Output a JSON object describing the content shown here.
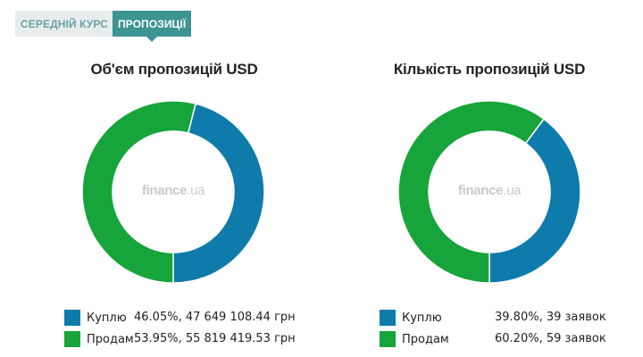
{
  "tabs": [
    {
      "label": "СЕРЕДНІЙ КУРС",
      "active": false
    },
    {
      "label": "ПРОПОЗИЦІЇ",
      "active": true
    }
  ],
  "watermark": {
    "brand": "finance",
    "domain": ".ua"
  },
  "colors": {
    "buy": "#0f7bab",
    "sell": "#17a43a",
    "tab_active": "#3c9493"
  },
  "chart_data": [
    {
      "type": "pie",
      "title": "Об'єм пропозицій USD",
      "categories": [
        "Куплю",
        "Продам"
      ],
      "values": [
        46.05,
        53.95
      ],
      "legend_values": [
        "46.05%, 47 649 108.44 грн",
        "53.95%, 55 819 419.53 грн"
      ],
      "colors": [
        "#0f7bab",
        "#17a43a"
      ],
      "legend": "bottom"
    },
    {
      "type": "pie",
      "title": "Кількість пропозицій USD",
      "categories": [
        "Куплю",
        "Продам"
      ],
      "values": [
        39.8,
        60.2
      ],
      "legend_values": [
        "39.80%, 39 заявок",
        "60.20%, 59 заявок"
      ],
      "colors": [
        "#0f7bab",
        "#17a43a"
      ],
      "legend": "bottom"
    }
  ]
}
